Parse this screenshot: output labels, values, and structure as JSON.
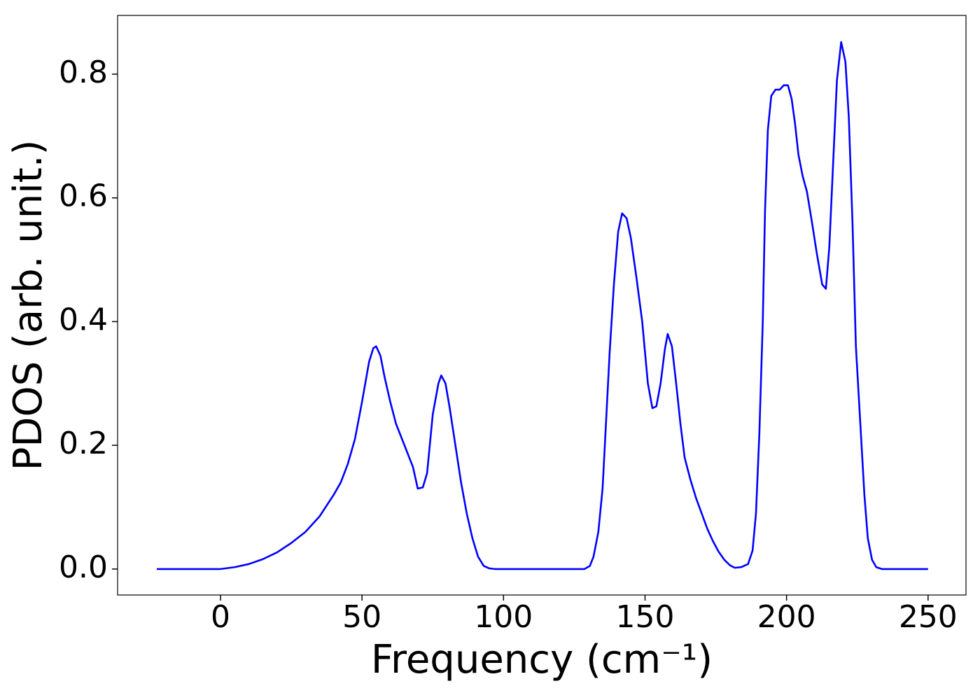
{
  "chart_data": {
    "type": "line",
    "xlabel": "Frequency (cm⁻¹)",
    "ylabel": "PDOS (arb. unit.)",
    "x": [
      -22.5,
      -15,
      -10,
      -5,
      0,
      5,
      10,
      15,
      20,
      25,
      30,
      35,
      40,
      42.5,
      45,
      47.5,
      50,
      52.5,
      54,
      55,
      56.5,
      58,
      60,
      62,
      65,
      68,
      69.7,
      71.5,
      73,
      75,
      77,
      78,
      79.5,
      81,
      83,
      85,
      87,
      89,
      91,
      93,
      95,
      97,
      110,
      120,
      128.6,
      130.5,
      131.8,
      133.5,
      135,
      137.5,
      139,
      140.5,
      141.9,
      143.5,
      145,
      147,
      149,
      151,
      152.6,
      154,
      155.5,
      157,
      158,
      159.5,
      161,
      162.5,
      164,
      166,
      168,
      170,
      172,
      174,
      176,
      178,
      180,
      181.7,
      184,
      186.4,
      188,
      189.2,
      190.4,
      191.6,
      192.4,
      193.4,
      194.6,
      196.1,
      197.6,
      199,
      200.5,
      201.8,
      203,
      204.2,
      205.7,
      207.2,
      209,
      210.7,
      212.6,
      213.9,
      215.1,
      217.8,
      219.3,
      220.8,
      222,
      223.3,
      224.5,
      226,
      227.5,
      228.7,
      230.2,
      231.7,
      233.7,
      240,
      250
    ],
    "series": [
      {
        "name": "PDOS",
        "color": "#0000ff",
        "values": [
          0,
          0,
          0,
          0,
          0,
          0.003,
          0.008,
          0.016,
          0.027,
          0.042,
          0.06,
          0.085,
          0.12,
          0.14,
          0.17,
          0.21,
          0.27,
          0.335,
          0.357,
          0.36,
          0.345,
          0.31,
          0.27,
          0.235,
          0.2,
          0.165,
          0.13,
          0.132,
          0.155,
          0.25,
          0.3,
          0.313,
          0.3,
          0.26,
          0.2,
          0.14,
          0.09,
          0.05,
          0.02,
          0.005,
          0.001,
          0,
          0,
          0,
          0,
          0.005,
          0.02,
          0.06,
          0.13,
          0.35,
          0.46,
          0.545,
          0.575,
          0.567,
          0.535,
          0.47,
          0.4,
          0.3,
          0.26,
          0.263,
          0.3,
          0.355,
          0.38,
          0.36,
          0.3,
          0.235,
          0.18,
          0.145,
          0.115,
          0.09,
          0.065,
          0.045,
          0.028,
          0.015,
          0.006,
          0.002,
          0.003,
          0.008,
          0.03,
          0.09,
          0.22,
          0.4,
          0.58,
          0.71,
          0.765,
          0.775,
          0.775,
          0.782,
          0.782,
          0.76,
          0.72,
          0.67,
          0.635,
          0.61,
          0.56,
          0.51,
          0.46,
          0.453,
          0.52,
          0.79,
          0.852,
          0.82,
          0.73,
          0.56,
          0.36,
          0.24,
          0.12,
          0.05,
          0.015,
          0.003,
          0,
          0,
          0
        ]
      }
    ],
    "xlim": [
      -36.35,
      263.4
    ],
    "ylim": [
      -0.042,
      0.895
    ],
    "xticks": [
      0,
      50,
      100,
      150,
      200,
      250
    ],
    "yticks": [
      {
        "value": 0,
        "label": "0.0"
      },
      {
        "value": 0.2,
        "label": "0.2"
      },
      {
        "value": 0.4,
        "label": "0.4"
      },
      {
        "value": 0.6,
        "label": "0.6"
      },
      {
        "value": 0.8,
        "label": "0.8"
      }
    ],
    "grid": false
  }
}
